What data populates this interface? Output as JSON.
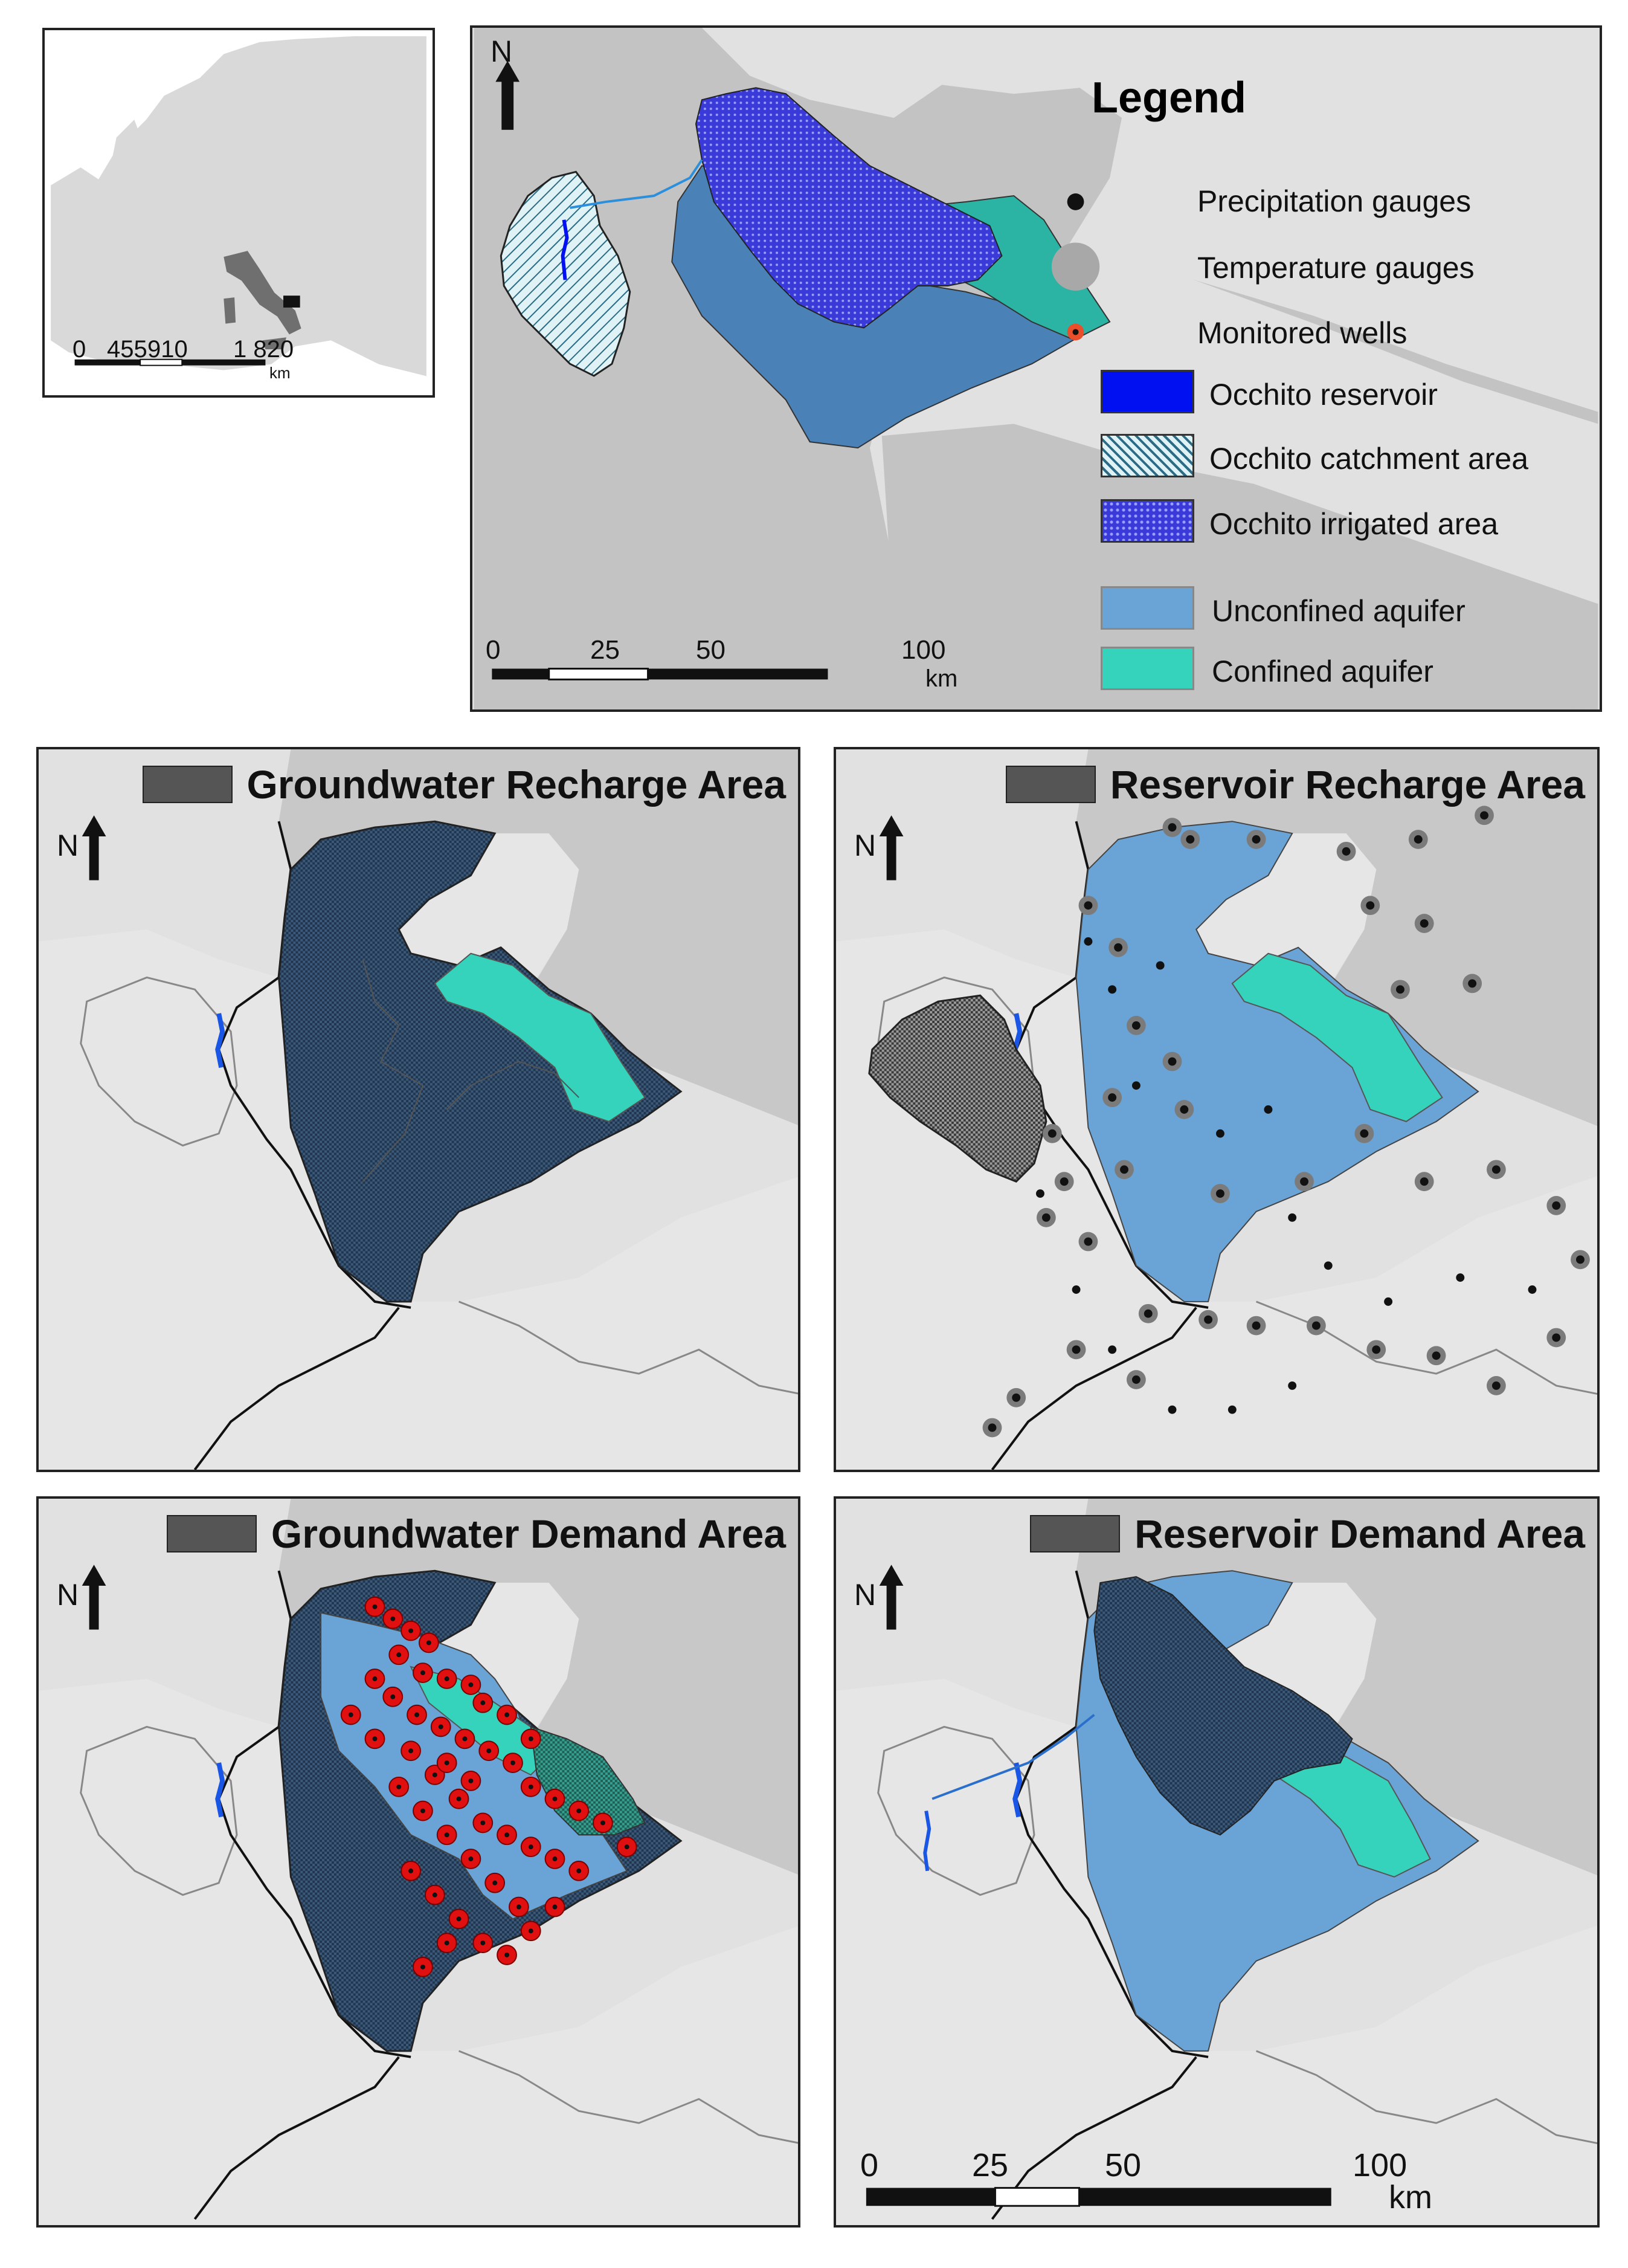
{
  "inset": {
    "scale_labels": [
      "0",
      "455",
      "910",
      "1 820",
      "km"
    ]
  },
  "main_map": {
    "north_label": "N",
    "legend": {
      "title": "Legend",
      "items": [
        {
          "label": "Precipitation gauges",
          "symbol": "black-dot"
        },
        {
          "label": "Temperature gauges",
          "symbol": "grey-dot"
        },
        {
          "label": "Monitored wells",
          "symbol": "red-ring-dot"
        },
        {
          "label": "Occhito reservoir",
          "color": "#0010f0"
        },
        {
          "label": "Occhito catchment area",
          "color": "#7fc6c6"
        },
        {
          "label": "Occhito irrigated area",
          "color": "#3a3ad8"
        },
        {
          "label": "Unconfined aquifer",
          "color": "#6aa3d5"
        },
        {
          "label": "Confined aquifer",
          "color": "#35d2bc"
        }
      ]
    },
    "scale_labels": [
      "0",
      "25",
      "50",
      "100",
      "km"
    ]
  },
  "panels": [
    {
      "id": "groundwater-recharge",
      "title": "Groundwater Recharge Area",
      "north_label": "N"
    },
    {
      "id": "reservoir-recharge",
      "title": "Reservoir Recharge Area",
      "north_label": "N"
    },
    {
      "id": "groundwater-demand",
      "title": "Groundwater Demand Area",
      "north_label": "N"
    },
    {
      "id": "reservoir-demand",
      "title": "Reservoir Demand Area",
      "north_label": "N"
    }
  ],
  "bottom_scale_labels": [
    "0",
    "25",
    "50",
    "100",
    "km"
  ],
  "colors": {
    "land": "#c8c8c8",
    "sea": "#e1e1e1",
    "unconfined": "#5e97cc",
    "confined": "#35d2bc",
    "recharge_dark": "#1f3550",
    "reservoir": "#1a56e6",
    "wells": "#e01010"
  }
}
